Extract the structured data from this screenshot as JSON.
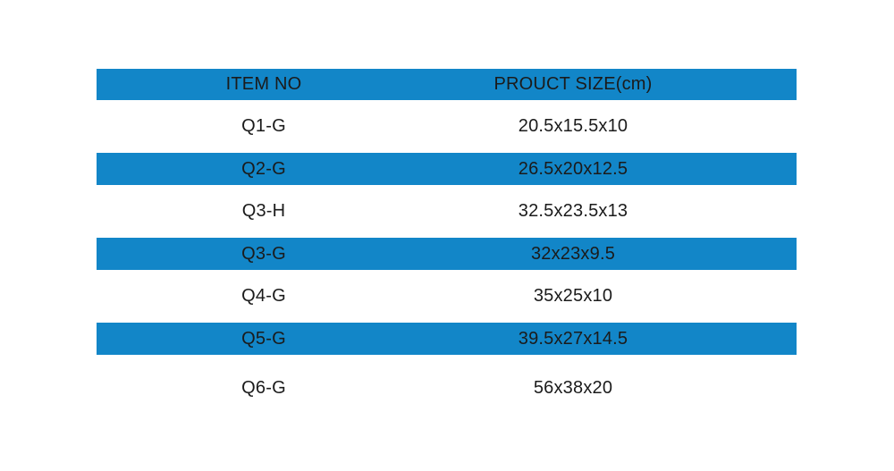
{
  "chart_data": {
    "type": "table",
    "columns": [
      "ITEM NO",
      "PROUCT SIZE(cm)"
    ],
    "rows": [
      {
        "item_no": "Q1-G",
        "product_size": "20.5x15.5x10",
        "highlighted": false
      },
      {
        "item_no": "Q2-G",
        "product_size": "26.5x20x12.5",
        "highlighted": true
      },
      {
        "item_no": "Q3-H",
        "product_size": "32.5x23.5x13",
        "highlighted": false
      },
      {
        "item_no": "Q3-G",
        "product_size": "32x23x9.5",
        "highlighted": true
      },
      {
        "item_no": "Q4-G",
        "product_size": "35x25x10",
        "highlighted": false
      },
      {
        "item_no": "Q5-G",
        "product_size": "39.5x27x14.5",
        "highlighted": true
      },
      {
        "item_no": "Q6-G",
        "product_size": "56x38x20",
        "highlighted": false
      }
    ],
    "colors": {
      "header_background": "#1286c8",
      "highlight_background": "#1286c8",
      "row_background": "#ffffff",
      "page_background": "#ffffff",
      "text": "#1b1b1b"
    },
    "layout_hints": {
      "grid": false,
      "legend": "none",
      "striping": "blue header; every second data row highlighted blue (rows 2, 4, 6)"
    }
  }
}
